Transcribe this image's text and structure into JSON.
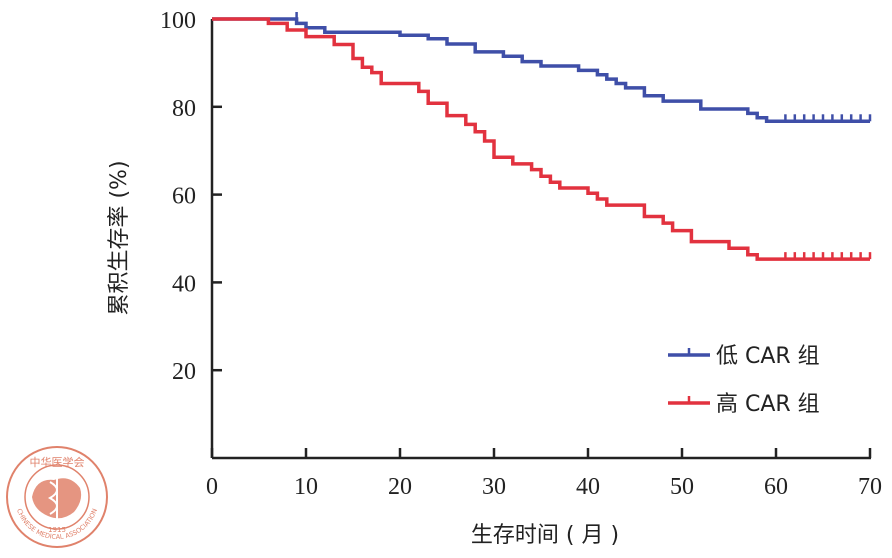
{
  "chart_data": {
    "type": "line",
    "step": true,
    "title": "",
    "xlabel": "生存时间 ( 月 )",
    "ylabel": "累积生存率 (%)",
    "xlim": [
      0,
      70
    ],
    "ylim": [
      0,
      100
    ],
    "xticks": [
      "0",
      "10",
      "20",
      "30",
      "40",
      "50",
      "60",
      "70"
    ],
    "yticks": [
      "20",
      "40",
      "60",
      "80",
      "100"
    ],
    "grid": false,
    "legend": "bottom-right",
    "series": [
      {
        "name": "低 CAR 组",
        "color": "#3f4fa8",
        "points": [
          [
            0,
            100
          ],
          [
            9,
            100
          ],
          [
            9,
            99
          ],
          [
            10,
            99
          ],
          [
            10,
            98
          ],
          [
            12,
            98
          ],
          [
            12,
            97
          ],
          [
            20,
            97
          ],
          [
            20,
            96.3
          ],
          [
            23,
            96.3
          ],
          [
            23,
            95.5
          ],
          [
            25,
            95.5
          ],
          [
            25,
            94.3
          ],
          [
            28,
            94.3
          ],
          [
            28,
            92.5
          ],
          [
            31,
            92.5
          ],
          [
            31,
            91.5
          ],
          [
            33,
            91.5
          ],
          [
            33,
            90.3
          ],
          [
            35,
            90.3
          ],
          [
            35,
            89.3
          ],
          [
            39,
            89.3
          ],
          [
            39,
            88.3
          ],
          [
            41,
            88.3
          ],
          [
            41,
            87.3
          ],
          [
            42,
            87.3
          ],
          [
            42,
            86.3
          ],
          [
            43,
            86.3
          ],
          [
            43,
            85.3
          ],
          [
            44,
            85.3
          ],
          [
            44,
            84.3
          ],
          [
            46,
            84.3
          ],
          [
            46,
            82.5
          ],
          [
            48,
            82.5
          ],
          [
            48,
            81.3
          ],
          [
            52,
            81.3
          ],
          [
            52,
            79.5
          ],
          [
            57,
            79.5
          ],
          [
            57,
            78.5
          ],
          [
            58,
            78.5
          ],
          [
            58,
            77.5
          ],
          [
            59,
            77.5
          ],
          [
            59,
            76.7
          ],
          [
            70,
            76.7
          ]
        ],
        "censored": [
          [
            9,
            100
          ],
          [
            61,
            76.7
          ],
          [
            62,
            76.7
          ],
          [
            63,
            76.7
          ],
          [
            64,
            76.7
          ],
          [
            65,
            76.7
          ],
          [
            66,
            76.7
          ],
          [
            67,
            76.7
          ],
          [
            68,
            76.7
          ],
          [
            69,
            76.7
          ],
          [
            70,
            76.7
          ]
        ]
      },
      {
        "name": "高 CAR 组",
        "color": "#e2323f",
        "points": [
          [
            0,
            100
          ],
          [
            6,
            100
          ],
          [
            6,
            99
          ],
          [
            8,
            99
          ],
          [
            8,
            97.5
          ],
          [
            10,
            97.5
          ],
          [
            10,
            96
          ],
          [
            13,
            96
          ],
          [
            13,
            94.2
          ],
          [
            15,
            94.2
          ],
          [
            15,
            91
          ],
          [
            16,
            91
          ],
          [
            16,
            89
          ],
          [
            17,
            89
          ],
          [
            17,
            87.8
          ],
          [
            18,
            87.8
          ],
          [
            18,
            85.3
          ],
          [
            22,
            85.3
          ],
          [
            22,
            83.5
          ],
          [
            23,
            83.5
          ],
          [
            23,
            80.8
          ],
          [
            25,
            80.8
          ],
          [
            25,
            78
          ],
          [
            27,
            78
          ],
          [
            27,
            76
          ],
          [
            28,
            76
          ],
          [
            28,
            74.3
          ],
          [
            29,
            74.3
          ],
          [
            29,
            72.2
          ],
          [
            30,
            72.2
          ],
          [
            30,
            68.5
          ],
          [
            32,
            68.5
          ],
          [
            32,
            67
          ],
          [
            34,
            67
          ],
          [
            34,
            65.7
          ],
          [
            35,
            65.7
          ],
          [
            35,
            64.2
          ],
          [
            36,
            64.2
          ],
          [
            36,
            62.8
          ],
          [
            37,
            62.8
          ],
          [
            37,
            61.5
          ],
          [
            40,
            61.5
          ],
          [
            40,
            60.3
          ],
          [
            41,
            60.3
          ],
          [
            41,
            59
          ],
          [
            42,
            59
          ],
          [
            42,
            57.6
          ],
          [
            46,
            57.6
          ],
          [
            46,
            55
          ],
          [
            48,
            55
          ],
          [
            48,
            53.5
          ],
          [
            49,
            53.5
          ],
          [
            49,
            51.8
          ],
          [
            51,
            51.8
          ],
          [
            51,
            49.3
          ],
          [
            55,
            49.3
          ],
          [
            55,
            47.8
          ],
          [
            57,
            47.8
          ],
          [
            57,
            46.3
          ],
          [
            58,
            46.3
          ],
          [
            58,
            45.3
          ],
          [
            70,
            45.3
          ]
        ],
        "censored": [
          [
            61,
            45.3
          ],
          [
            62,
            45.3
          ],
          [
            63,
            45.3
          ],
          [
            64,
            45.3
          ],
          [
            65,
            45.3
          ],
          [
            66,
            45.3
          ],
          [
            67,
            45.3
          ],
          [
            68,
            45.3
          ],
          [
            69,
            45.3
          ],
          [
            70,
            45.3
          ]
        ]
      }
    ]
  },
  "logo": {
    "top_text": "中华医学会",
    "year": "1915",
    "ring_text": "CHINESE MEDICAL ASSOCIATION"
  }
}
